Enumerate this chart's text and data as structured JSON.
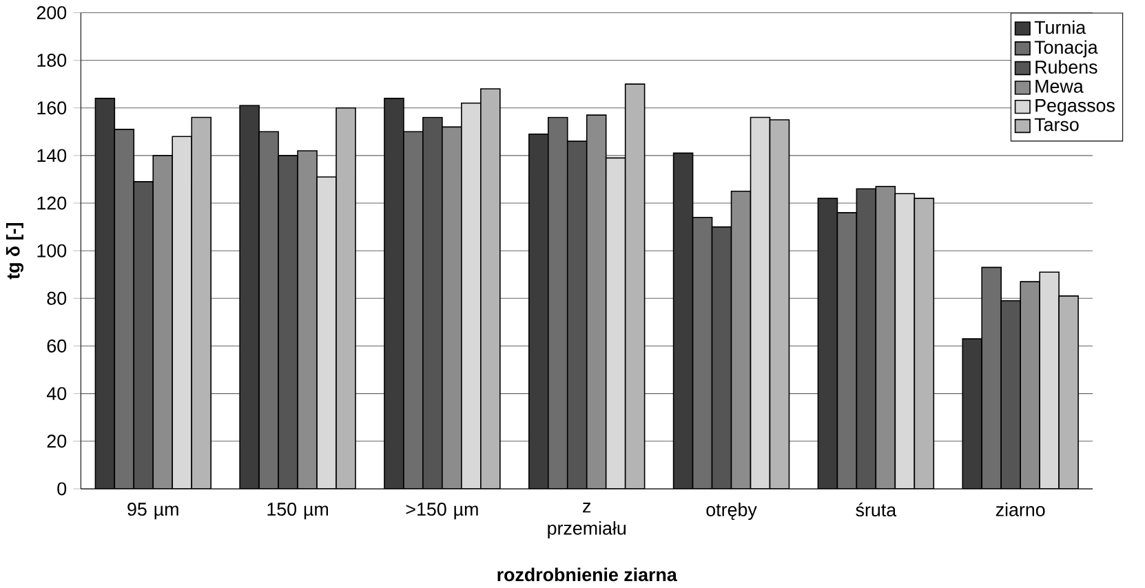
{
  "chart_data": {
    "type": "bar",
    "xlabel": "rozdrobnienie ziarna",
    "ylabel": "tg δ [-]",
    "categories": [
      "95 µm",
      "150 µm",
      ">150 µm",
      "z przemiału",
      "otręby",
      "śruta",
      "ziarno"
    ],
    "series": [
      {
        "name": "Turnia",
        "color": "#3c3c3c",
        "values": [
          164,
          161,
          164,
          149,
          141,
          122,
          63
        ]
      },
      {
        "name": "Tonacja",
        "color": "#6e6e6e",
        "values": [
          151,
          150,
          150,
          156,
          114,
          116,
          93
        ]
      },
      {
        "name": "Rubens",
        "color": "#555555",
        "values": [
          129,
          140,
          156,
          146,
          110,
          126,
          79
        ]
      },
      {
        "name": "Mewa",
        "color": "#8c8c8c",
        "values": [
          140,
          142,
          152,
          157,
          125,
          127,
          87
        ]
      },
      {
        "name": "Pegassos",
        "color": "#d8d8d8",
        "values": [
          148,
          131,
          162,
          139,
          156,
          124,
          91
        ]
      },
      {
        "name": "Tarso",
        "color": "#b4b4b4",
        "values": [
          156,
          160,
          168,
          170,
          155,
          122,
          81
        ]
      }
    ],
    "ylim": [
      0,
      200
    ],
    "yticks": [
      0,
      20,
      40,
      60,
      80,
      100,
      120,
      140,
      160,
      180,
      200
    ],
    "grid": "y",
    "legend": "top right"
  }
}
